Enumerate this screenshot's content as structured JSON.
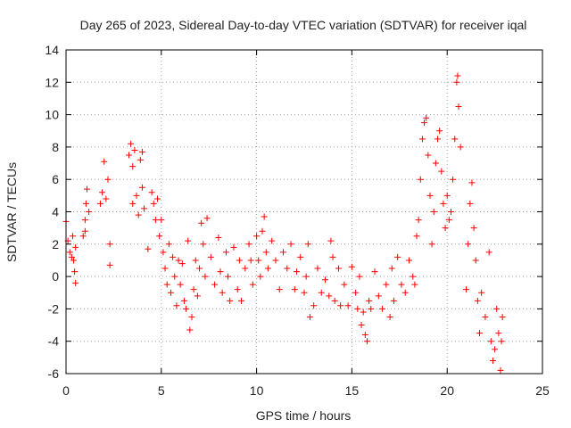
{
  "chart_data": {
    "type": "scatter",
    "title": "Day 265 of 2023, Sidereal Day-to-day VTEC variation (SDTVAR) for receiver iqal",
    "xlabel": "GPS time / hours",
    "ylabel": "SDTVAR / TECUs",
    "xlim": [
      0,
      25
    ],
    "ylim": [
      -6,
      14
    ],
    "xticks": [
      0,
      5,
      10,
      15,
      20,
      25
    ],
    "yticks": [
      -6,
      -4,
      -2,
      0,
      2,
      4,
      6,
      8,
      10,
      12,
      14
    ],
    "grid": true,
    "marker": "plus",
    "color": "#ff0000",
    "series": [
      {
        "name": "SDTVAR",
        "points": [
          [
            0.0,
            3.4
          ],
          [
            0.1,
            2.2
          ],
          [
            0.2,
            1.5
          ],
          [
            0.3,
            1.2
          ],
          [
            0.35,
            2.5
          ],
          [
            0.4,
            1.0
          ],
          [
            0.45,
            0.3
          ],
          [
            0.5,
            -0.4
          ],
          [
            0.5,
            1.8
          ],
          [
            0.9,
            2.5
          ],
          [
            1.0,
            3.5
          ],
          [
            1.05,
            4.5
          ],
          [
            1.1,
            5.4
          ],
          [
            1.2,
            4.0
          ],
          [
            1.0,
            2.8
          ],
          [
            1.8,
            4.5
          ],
          [
            1.9,
            5.2
          ],
          [
            2.0,
            7.1
          ],
          [
            2.1,
            4.8
          ],
          [
            2.2,
            6.0
          ],
          [
            2.3,
            2.0
          ],
          [
            2.3,
            0.7
          ],
          [
            3.3,
            7.5
          ],
          [
            3.4,
            8.2
          ],
          [
            3.5,
            6.8
          ],
          [
            3.5,
            4.5
          ],
          [
            3.6,
            7.8
          ],
          [
            3.7,
            5.0
          ],
          [
            3.8,
            3.8
          ],
          [
            3.9,
            7.2
          ],
          [
            4.0,
            7.7
          ],
          [
            4.0,
            5.5
          ],
          [
            4.1,
            4.2
          ],
          [
            4.3,
            1.7
          ],
          [
            4.5,
            5.2
          ],
          [
            4.6,
            4.5
          ],
          [
            4.7,
            3.5
          ],
          [
            4.8,
            4.8
          ],
          [
            4.9,
            2.5
          ],
          [
            5.0,
            3.5
          ],
          [
            5.1,
            1.5
          ],
          [
            5.2,
            0.5
          ],
          [
            5.3,
            -0.5
          ],
          [
            5.4,
            2.0
          ],
          [
            5.5,
            -1.0
          ],
          [
            5.6,
            1.2
          ],
          [
            5.7,
            0.0
          ],
          [
            5.8,
            -1.8
          ],
          [
            5.9,
            1.0
          ],
          [
            6.0,
            -0.5
          ],
          [
            6.1,
            0.8
          ],
          [
            6.2,
            -1.5
          ],
          [
            6.3,
            -2.0
          ],
          [
            6.4,
            2.2
          ],
          [
            6.5,
            -3.3
          ],
          [
            6.6,
            -2.5
          ],
          [
            6.7,
            -0.8
          ],
          [
            6.8,
            1.0
          ],
          [
            6.9,
            -1.2
          ],
          [
            7.0,
            0.5
          ],
          [
            7.1,
            3.3
          ],
          [
            7.2,
            2.0
          ],
          [
            7.3,
            0.0
          ],
          [
            7.4,
            3.6
          ],
          [
            7.6,
            1.2
          ],
          [
            7.8,
            -0.5
          ],
          [
            8.0,
            2.4
          ],
          [
            8.1,
            0.3
          ],
          [
            8.2,
            -1.0
          ],
          [
            8.4,
            1.5
          ],
          [
            8.5,
            0.0
          ],
          [
            8.6,
            -1.5
          ],
          [
            8.8,
            1.8
          ],
          [
            9.0,
            -0.8
          ],
          [
            9.1,
            1.0
          ],
          [
            9.2,
            -1.5
          ],
          [
            9.4,
            0.5
          ],
          [
            9.6,
            2.0
          ],
          [
            9.7,
            1.0
          ],
          [
            9.8,
            -0.5
          ],
          [
            10.0,
            2.5
          ],
          [
            10.1,
            1.0
          ],
          [
            10.2,
            0.0
          ],
          [
            10.3,
            2.8
          ],
          [
            10.4,
            3.7
          ],
          [
            10.5,
            1.5
          ],
          [
            10.6,
            0.5
          ],
          [
            10.8,
            2.2
          ],
          [
            11.0,
            1.0
          ],
          [
            11.2,
            -0.8
          ],
          [
            11.4,
            1.5
          ],
          [
            11.6,
            0.5
          ],
          [
            11.8,
            2.0
          ],
          [
            12.0,
            -0.8
          ],
          [
            12.1,
            0.3
          ],
          [
            12.3,
            1.2
          ],
          [
            12.5,
            -1.0
          ],
          [
            12.6,
            0.0
          ],
          [
            12.7,
            2.0
          ],
          [
            12.8,
            -2.5
          ],
          [
            13.0,
            -1.8
          ],
          [
            13.2,
            0.5
          ],
          [
            13.4,
            -1.0
          ],
          [
            13.6,
            -0.2
          ],
          [
            13.8,
            -1.2
          ],
          [
            13.9,
            2.2
          ],
          [
            14.0,
            1.2
          ],
          [
            14.1,
            -1.5
          ],
          [
            14.3,
            0.5
          ],
          [
            14.4,
            -1.8
          ],
          [
            14.6,
            -0.5
          ],
          [
            14.8,
            -1.8
          ],
          [
            15.0,
            0.6
          ],
          [
            15.2,
            -1.0
          ],
          [
            15.3,
            -2.0
          ],
          [
            15.4,
            0.0
          ],
          [
            15.5,
            -3.0
          ],
          [
            15.6,
            -2.2
          ],
          [
            15.7,
            -3.6
          ],
          [
            15.8,
            -4.0
          ],
          [
            15.9,
            -1.5
          ],
          [
            16.0,
            -2.0
          ],
          [
            16.2,
            0.3
          ],
          [
            16.4,
            -1.2
          ],
          [
            16.6,
            -2.0
          ],
          [
            16.8,
            -0.5
          ],
          [
            17.0,
            -2.5
          ],
          [
            17.1,
            0.5
          ],
          [
            17.2,
            -1.5
          ],
          [
            17.4,
            1.2
          ],
          [
            17.6,
            -0.5
          ],
          [
            17.8,
            -1.0
          ],
          [
            18.0,
            1.0
          ],
          [
            18.2,
            0.0
          ],
          [
            18.3,
            -0.5
          ],
          [
            18.4,
            2.5
          ],
          [
            18.5,
            3.5
          ],
          [
            18.6,
            6.0
          ],
          [
            18.7,
            8.5
          ],
          [
            18.8,
            9.5
          ],
          [
            18.9,
            9.8
          ],
          [
            19.0,
            7.5
          ],
          [
            19.1,
            5.0
          ],
          [
            19.2,
            2.0
          ],
          [
            19.3,
            4.0
          ],
          [
            19.4,
            7.0
          ],
          [
            19.5,
            8.5
          ],
          [
            19.6,
            9.0
          ],
          [
            19.7,
            6.5
          ],
          [
            19.8,
            4.5
          ],
          [
            19.9,
            3.0
          ],
          [
            20.0,
            5.0
          ],
          [
            20.1,
            3.5
          ],
          [
            20.2,
            4.0
          ],
          [
            20.3,
            6.0
          ],
          [
            20.4,
            8.5
          ],
          [
            20.5,
            12.0
          ],
          [
            20.55,
            12.4
          ],
          [
            20.6,
            10.5
          ],
          [
            20.7,
            8.0
          ],
          [
            21.0,
            -0.8
          ],
          [
            21.1,
            2.0
          ],
          [
            21.2,
            4.5
          ],
          [
            21.3,
            5.8
          ],
          [
            21.4,
            3.0
          ],
          [
            21.5,
            1.0
          ],
          [
            21.6,
            -1.5
          ],
          [
            21.7,
            -3.5
          ],
          [
            21.8,
            -1.0
          ],
          [
            22.0,
            -2.5
          ],
          [
            22.2,
            1.5
          ],
          [
            22.3,
            -4.0
          ],
          [
            22.4,
            -5.2
          ],
          [
            22.5,
            -4.5
          ],
          [
            22.6,
            -2.0
          ],
          [
            22.7,
            -3.5
          ],
          [
            22.8,
            -5.8
          ],
          [
            22.85,
            -4.0
          ],
          [
            22.9,
            -2.5
          ]
        ]
      }
    ]
  }
}
